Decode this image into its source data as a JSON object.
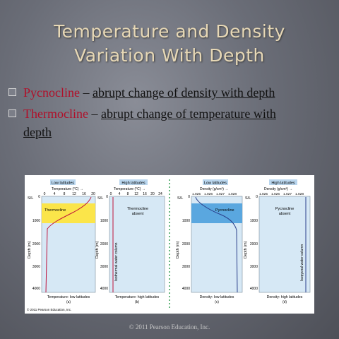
{
  "slide": {
    "title_line1": "Temperature and Density",
    "title_line2": "Variation With Depth",
    "bullets": [
      {
        "term": "Pycnocline",
        "sep": " – ",
        "def": "abrupt change of density with depth"
      },
      {
        "term": "Thermocline",
        "sep": " – ",
        "def": "abrupt change of temperature with",
        "def2": "depth"
      }
    ],
    "footer": "© 2011 Pearson Education, Inc."
  },
  "figure": {
    "copyright": "© 2011 Pearson Education, Inc.",
    "panels": [
      {
        "header": "Low latitudes",
        "axis_label": "Temperature (°C) →",
        "ticks": [
          "0",
          "4",
          "8",
          "12",
          "16",
          "20",
          "24"
        ],
        "band": "Thermocline",
        "caption": "Temperature: low latitudes",
        "letter": "(a)"
      },
      {
        "header": "High latitudes",
        "axis_label": "Temperature (°C) →",
        "ticks": [
          "0",
          "4",
          "8",
          "12",
          "16",
          "20",
          "24"
        ],
        "band": "Thermocline",
        "band2": "absent",
        "vertical": "Isothermal water column",
        "caption": "Temperature: high latitudes",
        "letter": "(b)"
      },
      {
        "header": "Low latitudes",
        "axis_label": "Density (g/cm³) →",
        "ticks": [
          "1.025",
          "1.026",
          "1.027",
          "1.028"
        ],
        "band": "Pycnocline",
        "caption": "Density: low latitudes",
        "letter": "(c)"
      },
      {
        "header": "High latitudes",
        "axis_label": "Density (g/cm³) →",
        "ticks": [
          "1.025",
          "1.026",
          "1.027",
          "1.028"
        ],
        "band": "Pycnocline",
        "band2": "absent",
        "vertical": "Isopycnal water column",
        "caption": "Density: high latitudes",
        "letter": "(d)"
      }
    ],
    "depth_label": "Depth (m)",
    "sl_label": "S/L",
    "depth_ticks": [
      "0",
      "1000",
      "2000",
      "3000",
      "4000"
    ]
  },
  "colors": {
    "title": "#e7d8b6",
    "term": "#b0102a",
    "band_yellow": "#fbe54a",
    "band_blue": "#5aa7df",
    "water": "#d6e8f5",
    "profile": "#c0143c"
  }
}
